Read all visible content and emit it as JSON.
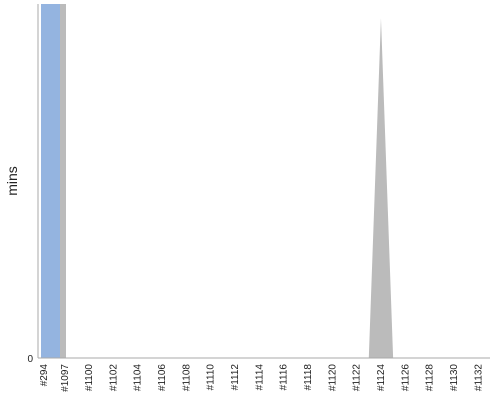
{
  "chart_data": {
    "type": "area",
    "ylabel": "mins",
    "y_tick_labels": [
      "0"
    ],
    "categories": [
      "#294",
      "#1097",
      "#1100",
      "#1102",
      "#1104",
      "#1106",
      "#1108",
      "#1110",
      "#1112",
      "#1114",
      "#1116",
      "#1118",
      "#1120",
      "#1122",
      "#1124",
      "#1126",
      "#1128",
      "#1130",
      "#1132"
    ],
    "x_values": [
      294,
      1097,
      1100,
      1102,
      1104,
      1106,
      1108,
      1110,
      1112,
      1114,
      1116,
      1118,
      1120,
      1122,
      1123,
      1124,
      1125,
      1126,
      1128,
      1130,
      1132
    ],
    "series": [
      {
        "values": [
          100,
          100,
          0,
          0,
          0,
          0,
          0,
          0,
          0,
          0,
          0,
          0,
          0,
          0,
          0,
          96,
          0,
          0,
          0,
          0,
          0
        ],
        "color": "#bbbbbb"
      },
      {
        "values": [
          100,
          100,
          0,
          0,
          0,
          0,
          0,
          0,
          0,
          0,
          0,
          0,
          0,
          0,
          0,
          0,
          0,
          0,
          0,
          0,
          0
        ],
        "color": "#94b4e0"
      }
    ],
    "ylim": [
      0,
      100
    ],
    "grid": false,
    "axis_color": "#aaaaaa"
  }
}
